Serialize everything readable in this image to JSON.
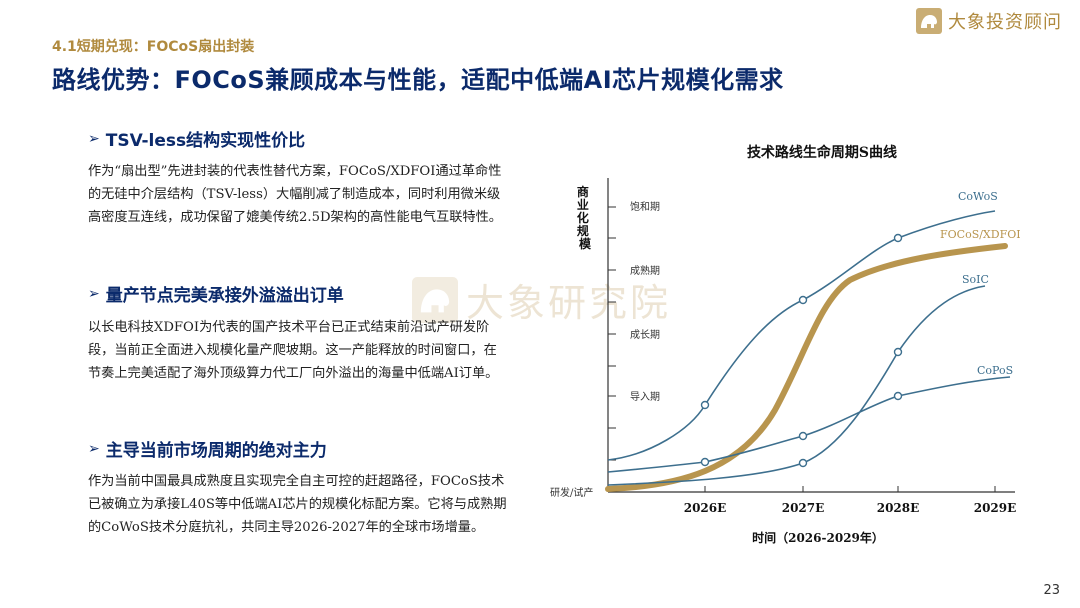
{
  "header": {
    "section_label": "4.1短期兑现：FOCoS扇出封装",
    "title": "路线优势：FOCoS兼顾成本与性能，适配中低端AI芯片规模化需求"
  },
  "brand": {
    "name": "大象投资顾问"
  },
  "watermark": {
    "text": "大象研究院"
  },
  "bullets": [
    {
      "title": "TSV-less结构实现性价比",
      "text": "作为“扇出型”先进封装的代表性替代方案，FOCoS/XDFOI通过革命性的无硅中介层结构（TSV-less）大幅削减了制造成本，同时利用微米级高密度互连线，成功保留了媲美传统2.5D架构的高性能电气互联特性。"
    },
    {
      "title": "量产节点完美承接外溢溢出订单",
      "text": "以长电科技XDFOI为代表的国产技术平台已正式结束前沿试产研发阶段，当前正全面进入规模化量产爬坡期。这一产能释放的时间窗口，在节奏上完美适配了海外顶级算力代工厂向外溢出的海量中低端AI订单。"
    },
    {
      "title": "主导当前市场周期的绝对主力",
      "text": "作为当前中国最具成熟度且实现完全自主可控的赶超路径，FOCoS技术已被确立为承接L40S等中低端AI芯片的规模化标配方案。它将与成熟期的CoWoS技术分庭抗礼，共同主导2026-2027年的全球市场增量。"
    }
  ],
  "chart_data": {
    "type": "line",
    "title": "技术路线生命周期S曲线",
    "xlabel": "时间（2026-2029年）",
    "ylabel": "商业化规模",
    "categories": [
      "2026E",
      "2027E",
      "2028E",
      "2029E"
    ],
    "y_levels": [
      "研发/试产",
      "导入期",
      "成长期",
      "成熟期",
      "饱和期"
    ],
    "series": [
      {
        "name": "CoWoS",
        "color": "#3d6f8e"
      },
      {
        "name": "FOCoS/XDFOI",
        "color": "#b8954e"
      },
      {
        "name": "SoIC",
        "color": "#3d6f8e"
      },
      {
        "name": "CoPoS",
        "color": "#3d6f8e"
      }
    ]
  },
  "page_number": "23"
}
